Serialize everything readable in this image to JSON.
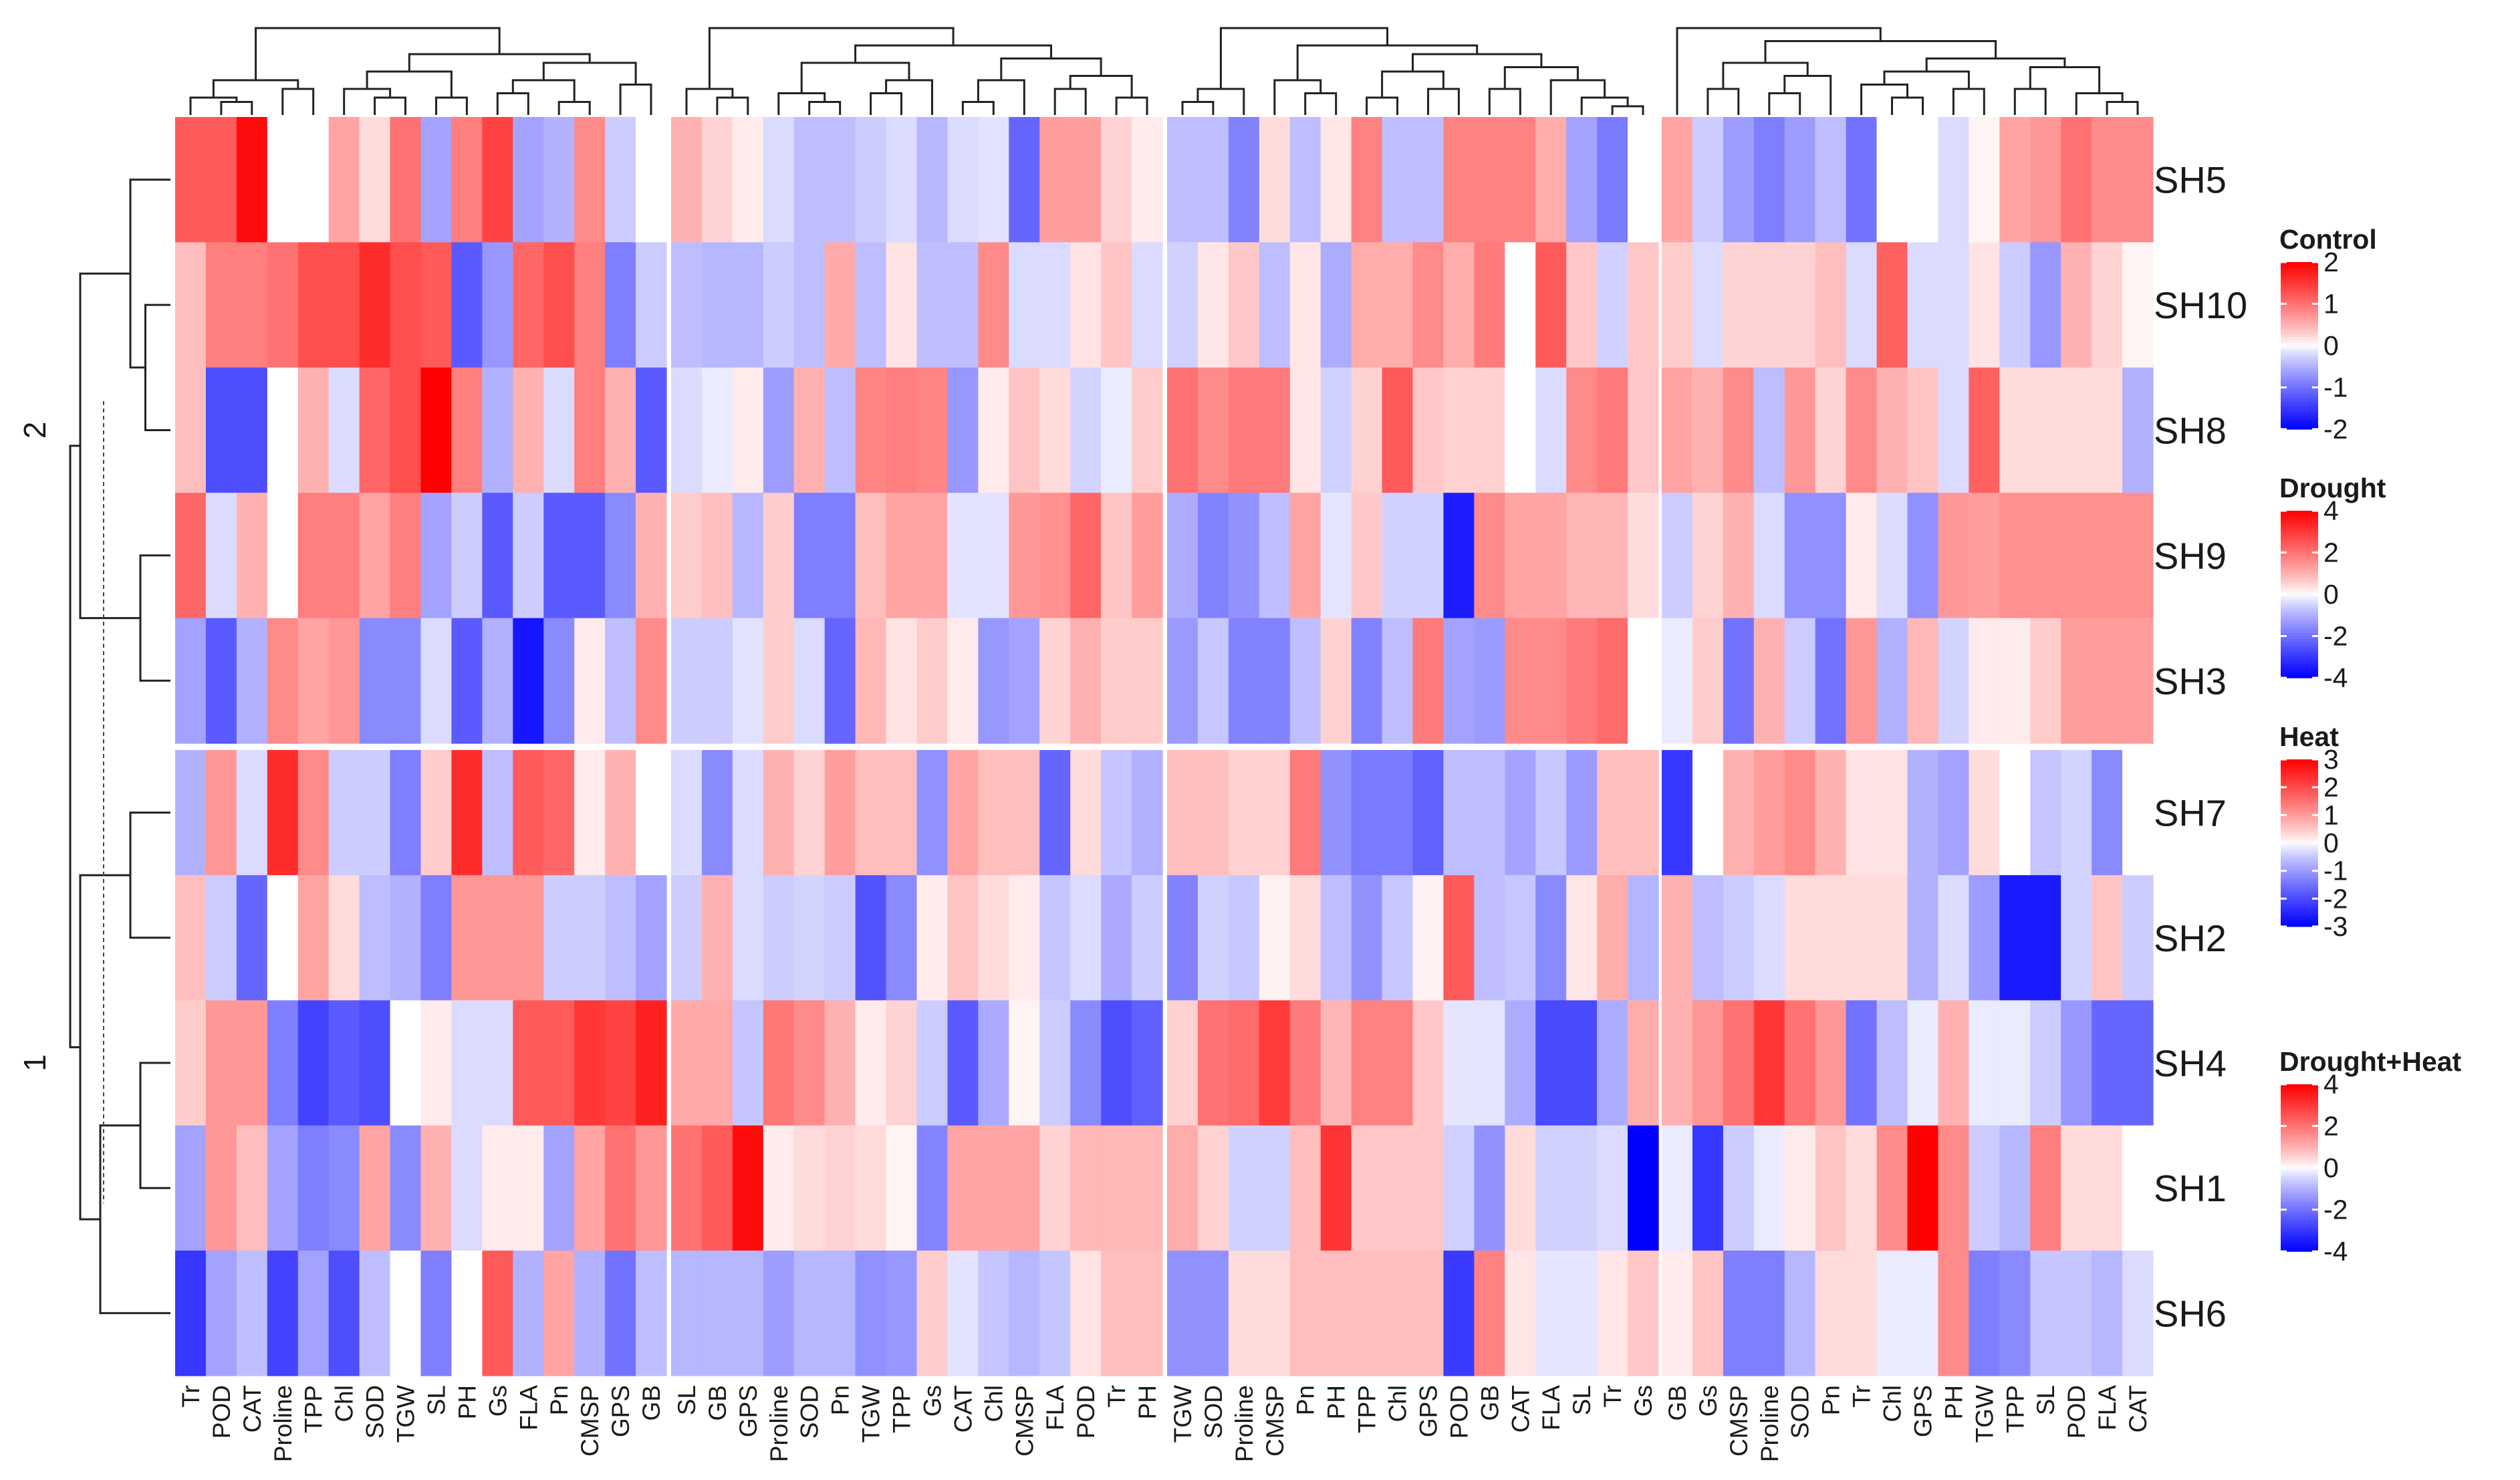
{
  "chart_data": {
    "type": "heatmap",
    "title": "",
    "row_names": [
      "SH5",
      "SH10",
      "SH8",
      "SH9",
      "SH3",
      "SH7",
      "SH2",
      "SH4",
      "SH1",
      "SH6"
    ],
    "row_split_labels": [
      "2",
      "1"
    ],
    "row_split_membership": {
      "2": [
        "SH5",
        "SH10",
        "SH8",
        "SH9",
        "SH3"
      ],
      "1": [
        "SH7",
        "SH2",
        "SH4",
        "SH1",
        "SH6"
      ]
    },
    "panels": [
      {
        "name": "Control",
        "columns": [
          "Tr",
          "POD",
          "CAT",
          "Proline",
          "TPP",
          "Chl",
          "SOD",
          "TGW",
          "SL",
          "PH",
          "Gs",
          "FLA",
          "Pn",
          "CMSP",
          "GPS",
          "GB"
        ],
        "legend_ticks": [
          2,
          1,
          0,
          -1,
          -2
        ],
        "color_range": [
          -2,
          2
        ],
        "values": [
          [
            1.2,
            1.2,
            1.9,
            0,
            0,
            0.6,
            0.2,
            1.0,
            -0.6,
            0.9,
            1.4,
            -0.6,
            -0.5,
            0.8,
            -0.3,
            0
          ],
          [
            0.4,
            0.9,
            0.9,
            1.0,
            1.3,
            1.3,
            1.6,
            1.3,
            1.2,
            -1.2,
            -0.7,
            1.1,
            1.3,
            0.9,
            -0.9,
            -0.3
          ],
          [
            0.4,
            -1.3,
            -1.3,
            0,
            0.5,
            -0.2,
            1.1,
            1.3,
            2.0,
            0.9,
            -0.5,
            0.5,
            -0.2,
            0.9,
            0.5,
            -1.2
          ],
          [
            1.1,
            -0.2,
            0.5,
            0,
            0.9,
            0.9,
            0.6,
            0.9,
            -0.6,
            -0.3,
            -1.2,
            -0.3,
            -1.2,
            -1.2,
            -0.8,
            0.5
          ],
          [
            -0.6,
            -1.2,
            -0.5,
            0.8,
            0.6,
            0.7,
            -0.8,
            -0.8,
            -0.2,
            -1.2,
            -0.5,
            -1.8,
            -0.8,
            0.1,
            -0.4,
            0.8
          ],
          [
            -0.5,
            0.7,
            -0.2,
            1.6,
            0.8,
            -0.3,
            -0.3,
            -0.9,
            0.3,
            1.6,
            -0.4,
            1.2,
            1.1,
            0.1,
            0.5,
            0
          ],
          [
            0.4,
            -0.3,
            -1.1,
            0,
            0.6,
            0.2,
            -0.4,
            -0.5,
            -0.9,
            0.7,
            0.7,
            0.7,
            -0.3,
            -0.3,
            -0.4,
            -0.6
          ],
          [
            0.3,
            0.7,
            0.7,
            -0.9,
            -1.4,
            -1.2,
            -1.3,
            0,
            0.1,
            -0.2,
            -0.2,
            1.2,
            1.2,
            1.5,
            1.4,
            1.7
          ],
          [
            -0.6,
            0.7,
            0.4,
            -0.6,
            -0.9,
            -0.8,
            0.6,
            -0.8,
            0.5,
            -0.2,
            0.1,
            0.1,
            -0.6,
            0.6,
            1.0,
            0.7
          ],
          [
            -1.5,
            -0.6,
            -0.4,
            -1.4,
            -0.6,
            -1.3,
            -0.4,
            0,
            -0.9,
            0,
            1.2,
            -0.5,
            0.6,
            -0.5,
            -1.0,
            -0.4
          ]
        ]
      },
      {
        "name": "Drought",
        "columns": [
          "SL",
          "GB",
          "GPS",
          "Proline",
          "SOD",
          "Pn",
          "TGW",
          "TPP",
          "Gs",
          "CAT",
          "Chl",
          "CMSP",
          "FLA",
          "POD",
          "Tr",
          "PH"
        ],
        "legend_ticks": [
          4,
          2,
          0,
          -2,
          -4
        ],
        "color_range": [
          -4,
          4
        ],
        "values": [
          [
            1.0,
            0.5,
            0.2,
            -0.4,
            -0.8,
            -0.8,
            -0.6,
            -0.4,
            -0.9,
            -0.4,
            -0.3,
            -2.2,
            1.3,
            1.3,
            0.5,
            0.2
          ],
          [
            -0.8,
            -0.9,
            -0.9,
            -0.6,
            -0.8,
            1.1,
            -0.8,
            0.3,
            -0.8,
            -0.8,
            1.6,
            -0.4,
            -0.4,
            0.3,
            0.7,
            -0.4
          ],
          [
            -0.4,
            -0.2,
            0.2,
            -1.3,
            1.0,
            -0.8,
            1.7,
            1.8,
            1.7,
            -1.4,
            0.2,
            0.7,
            0.4,
            -0.5,
            -0.2,
            0.6
          ],
          [
            0.6,
            0.8,
            -0.9,
            0.6,
            -1.8,
            -1.8,
            0.8,
            1.2,
            1.2,
            -0.3,
            -0.3,
            1.4,
            1.5,
            2.2,
            0.7,
            1.3
          ],
          [
            -0.6,
            -0.6,
            -0.3,
            0.6,
            -0.4,
            -2.2,
            0.9,
            0.3,
            0.6,
            0.2,
            -1.4,
            -1.2,
            0.5,
            1.0,
            0.6,
            0.6
          ],
          [
            -0.4,
            -1.6,
            -0.4,
            1.0,
            0.5,
            1.3,
            0.8,
            0.8,
            -1.5,
            1.2,
            0.8,
            0.8,
            -2.2,
            0.4,
            -0.7,
            -1.0
          ],
          [
            -0.6,
            1.0,
            -0.4,
            -0.6,
            -0.5,
            -0.6,
            -2.5,
            -1.6,
            0.2,
            0.7,
            0.4,
            0.2,
            -0.7,
            -0.4,
            -1.1,
            -0.6
          ],
          [
            1.1,
            1.1,
            -0.7,
            1.9,
            1.6,
            1.0,
            0.2,
            0.5,
            -0.6,
            -2.4,
            -1.1,
            0.1,
            -0.6,
            -1.6,
            -2.6,
            -2.3
          ],
          [
            2.0,
            2.4,
            3.8,
            0.2,
            0.4,
            0.5,
            0.4,
            0.1,
            -1.7,
            1.2,
            1.2,
            1.2,
            0.5,
            0.9,
            0.9,
            0.9
          ],
          [
            -0.9,
            -0.9,
            -0.9,
            -1.3,
            -0.9,
            -0.9,
            -1.5,
            -1.4,
            0.6,
            -0.3,
            -0.7,
            -0.9,
            -0.7,
            0.3,
            0.8,
            0.8
          ]
        ]
      },
      {
        "name": "Heat",
        "columns": [
          "TGW",
          "SOD",
          "Proline",
          "CMSP",
          "Pn",
          "PH",
          "TPP",
          "Chl",
          "GPS",
          "POD",
          "GB",
          "CAT",
          "FLA",
          "SL",
          "Tr",
          "Gs"
        ],
        "legend_ticks": [
          3,
          2,
          1,
          0,
          -1,
          -2,
          -3
        ],
        "color_range": [
          -3,
          3
        ],
        "values": [
          [
            -0.6,
            -0.6,
            -1.3,
            0.3,
            -0.6,
            0.2,
            1.3,
            -0.6,
            -0.6,
            1.3,
            1.3,
            1.3,
            0.8,
            -0.9,
            -1.4,
            0
          ],
          [
            -0.4,
            0.2,
            0.5,
            -0.6,
            0.2,
            -0.8,
            0.8,
            0.8,
            1.2,
            0.8,
            1.4,
            0,
            1.8,
            0.5,
            -0.4,
            0.5
          ],
          [
            1.5,
            1.2,
            1.4,
            1.4,
            0.2,
            -0.4,
            0.4,
            1.8,
            0.5,
            0.4,
            0.4,
            0,
            -0.3,
            1.2,
            1.4,
            0.5
          ],
          [
            -0.8,
            -1.3,
            -1.1,
            -0.6,
            0.9,
            -0.2,
            0.5,
            -0.4,
            -0.4,
            -2.6,
            1.2,
            0.9,
            0.9,
            0.7,
            0.7,
            0.3
          ],
          [
            -1.0,
            -0.5,
            -1.3,
            -1.3,
            -0.6,
            0.4,
            -1.3,
            -0.6,
            1.4,
            -0.9,
            -1.0,
            1.2,
            1.2,
            1.4,
            1.6,
            0
          ],
          [
            0.6,
            0.6,
            0.4,
            0.4,
            1.4,
            -1.1,
            -1.4,
            -1.4,
            -1.7,
            -0.6,
            -0.6,
            -0.9,
            -0.5,
            -1.0,
            0.6,
            0.6
          ],
          [
            -1.3,
            -0.4,
            -0.5,
            0.1,
            0.3,
            -0.6,
            -1.1,
            -0.5,
            0.1,
            1.8,
            -0.6,
            -0.5,
            -1.2,
            0.2,
            0.8,
            -0.7
          ],
          [
            0.4,
            1.5,
            1.6,
            2.2,
            1.4,
            0.7,
            1.3,
            1.3,
            0.5,
            -0.2,
            -0.2,
            -0.8,
            -2.0,
            -2.0,
            -0.8,
            0.8
          ],
          [
            0.8,
            0.4,
            -0.4,
            -0.4,
            0.6,
            2.3,
            0.5,
            0.5,
            0.5,
            -0.4,
            -1.1,
            0.3,
            -0.4,
            -0.4,
            -0.3,
            -3.0
          ],
          [
            -1.1,
            -1.1,
            0.3,
            0.3,
            0.6,
            0.6,
            0.6,
            0.6,
            0.6,
            -2.2,
            1.3,
            0.2,
            -0.2,
            -0.2,
            0.2,
            0.5
          ]
        ]
      },
      {
        "name": "Drought+Heat",
        "columns": [
          "GB",
          "Gs",
          "CMSP",
          "Proline",
          "SOD",
          "Pn",
          "Tr",
          "Chl",
          "GPS",
          "PH",
          "TGW",
          "TPP",
          "SL",
          "POD",
          "FLA",
          "CAT"
        ],
        "legend_ticks": [
          4,
          2,
          0,
          -2,
          -4
        ],
        "color_range": [
          -4,
          4
        ],
        "values": [
          [
            1.2,
            -0.6,
            -1.3,
            -1.8,
            -1.3,
            -0.8,
            -2.0,
            0,
            0,
            -0.4,
            0.1,
            1.2,
            1.4,
            2.0,
            1.6,
            1.6
          ],
          [
            0.6,
            -0.4,
            0.5,
            0.5,
            0.5,
            0.8,
            -0.4,
            2.3,
            -0.4,
            -0.4,
            0.3,
            -0.6,
            -1.4,
            1.0,
            0.5,
            0.1
          ],
          [
            1.2,
            1.0,
            1.6,
            -0.8,
            1.4,
            0.5,
            1.6,
            1.0,
            0.7,
            -0.4,
            2.3,
            0.4,
            0.4,
            0.4,
            0.4,
            -1.0
          ],
          [
            -0.6,
            0.5,
            1.0,
            -0.4,
            -1.5,
            -1.5,
            0.2,
            -0.4,
            -1.5,
            1.4,
            1.3,
            1.5,
            1.5,
            1.5,
            1.5,
            1.5
          ],
          [
            -0.2,
            0.6,
            -2.0,
            1.0,
            -0.6,
            -2.0,
            1.4,
            -1.0,
            0.9,
            -0.5,
            0.2,
            0.2,
            0.6,
            1.3,
            1.3,
            1.3
          ],
          [
            -3.0,
            0,
            1.0,
            1.3,
            1.6,
            1.0,
            0.3,
            0.3,
            -1.0,
            -1.2,
            0.4,
            0,
            -0.7,
            -0.5,
            -1.6,
            0
          ],
          [
            1.0,
            -0.8,
            -0.6,
            -0.4,
            0.4,
            0.4,
            0.4,
            0.4,
            -1.0,
            -0.4,
            -1.3,
            -3.5,
            -3.5,
            -0.5,
            0.7,
            -0.6
          ],
          [
            1.0,
            1.4,
            2.0,
            3.0,
            2.0,
            1.4,
            -2.0,
            -0.8,
            -0.2,
            1.0,
            -0.2,
            -0.2,
            -0.6,
            -1.4,
            -2.2,
            -2.2
          ],
          [
            -0.2,
            -3.0,
            -0.6,
            -0.2,
            0.2,
            0.7,
            0.4,
            1.6,
            4.0,
            1.6,
            -0.6,
            -0.9,
            1.8,
            0.4,
            0.4,
            0
          ],
          [
            0.2,
            0.7,
            -1.8,
            -1.8,
            -0.9,
            0.4,
            0.4,
            -0.2,
            -0.2,
            1.6,
            -1.8,
            -1.6,
            -0.7,
            -0.7,
            -0.9,
            -0.4
          ]
        ]
      }
    ]
  }
}
